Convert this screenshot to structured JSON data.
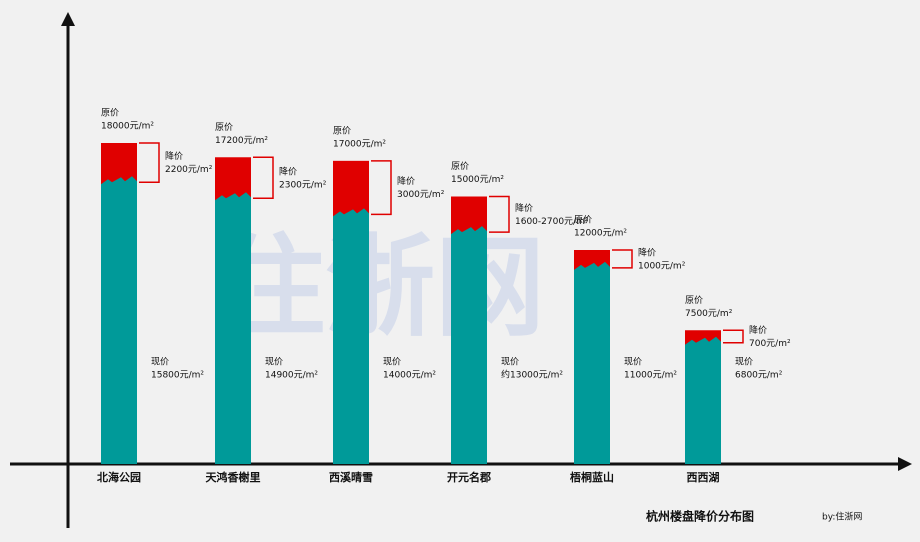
{
  "chart_data": {
    "type": "bar",
    "title": "杭州楼盘降价分布图",
    "source": "by:住浙网",
    "watermark": "住浙网",
    "categories": [
      "北海公园",
      "天鸿香榭里",
      "西溪晴雪",
      "开元名郡",
      "梧桐蓝山",
      "西西湖"
    ],
    "original": {
      "name": "原价",
      "color": "#e00000",
      "values": [
        18000,
        17200,
        17000,
        15000,
        12000,
        7500
      ],
      "value_labels": [
        "18000元/m²",
        "17200元/m²",
        "17000元/m²",
        "15000元/m²",
        "12000元/m²",
        "7500元/m²"
      ]
    },
    "drop": {
      "name": "降价",
      "color": "#e00000",
      "values": [
        2200,
        2300,
        3000,
        null,
        1000,
        700
      ],
      "value_labels": [
        "2200元/m²",
        "2300元/m²",
        "3000元/m²",
        "1600-2700元/m²",
        "1000元/m²",
        "700元/m²"
      ]
    },
    "current": {
      "name": "现价",
      "color": "#009a99",
      "values": [
        15800,
        14900,
        14000,
        13000,
        11000,
        6800
      ],
      "value_labels": [
        "15800元/m²",
        "14900元/m²",
        "14000元/m²",
        "约13000元/m²",
        "11000元/m²",
        "6800元/m²"
      ]
    }
  }
}
